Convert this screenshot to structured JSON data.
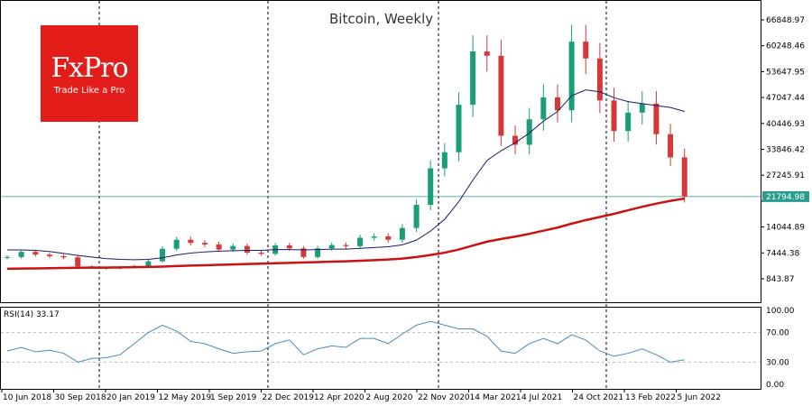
{
  "chart_data": {
    "type": "candlestick",
    "title": "Bitcoin, Weekly",
    "brand": {
      "name": "FxPro",
      "tagline": "Trade Like a Pro",
      "color": "#e31d1a"
    },
    "price_ticks": [
      "66848.97",
      "60248.46",
      "53647.95",
      "47047.44",
      "40446.93",
      "33846.42",
      "27245.91",
      "20645.40",
      "14044.89",
      "7444.38",
      "843.87"
    ],
    "current_price": "21794.98",
    "current_price_value": 21794.98,
    "x_ticks": [
      "10 Jun 2018",
      "30 Sep 2018",
      "20 Jan 2019",
      "12 May 2019",
      "1 Sep 2019",
      "22 Dec 2019",
      "12 Apr 2020",
      "2 Aug 2020",
      "22 Nov 2020",
      "14 Mar 2021",
      "4 Jul 2021",
      "24 Oct 2021",
      "13 Feb 2022",
      "5 Jun 2022"
    ],
    "closes": [
      6400,
      7700,
      7000,
      6600,
      6300,
      4000,
      3700,
      3450,
      3800,
      4100,
      5300,
      8500,
      10800,
      10000,
      9600,
      8300,
      9200,
      7500,
      7200,
      9350,
      8600,
      6400,
      8600,
      9450,
      9150,
      11300,
      11650,
      10800,
      13800,
      19700,
      29000,
      33100,
      45200,
      58800,
      57700,
      37300,
      35000,
      41500,
      47100,
      43800,
      61300,
      57000,
      46300,
      38500,
      43200,
      45500,
      37700,
      31800,
      21795
    ],
    "ma_slow": [
      3400,
      3450,
      3500,
      3550,
      3600,
      3650,
      3700,
      3700,
      3750,
      3800,
      3850,
      3950,
      4100,
      4200,
      4300,
      4400,
      4500,
      4600,
      4700,
      4800,
      4900,
      5000,
      5100,
      5200,
      5300,
      5450,
      5600,
      5750,
      6000,
      6400,
      6900,
      7500,
      8300,
      9300,
      10300,
      11000,
      11600,
      12300,
      13100,
      13900,
      14900,
      15800,
      16600,
      17400,
      18300,
      19200,
      20000,
      20700,
      21300
    ],
    "ma_fast": [
      8200,
      8200,
      8100,
      7800,
      7300,
      6800,
      6400,
      6000,
      5800,
      5700,
      5800,
      6200,
      6900,
      7400,
      7700,
      7900,
      8000,
      8100,
      8100,
      8300,
      8300,
      8200,
      8300,
      8400,
      8400,
      8600,
      8800,
      9000,
      9500,
      10700,
      13000,
      16000,
      20500,
      26000,
      31000,
      33500,
      35500,
      38000,
      41000,
      43500,
      47500,
      49000,
      48500,
      47000,
      46000,
      45500,
      45000,
      44500,
      43500
    ],
    "rsi": {
      "label": "RSI(14) 33.17",
      "period": 14,
      "current": 33.17,
      "ticks": [
        "100.00",
        "70.00",
        "30.00",
        "0.00"
      ],
      "levels": [
        70,
        30
      ],
      "values": [
        45,
        50,
        44,
        46,
        42,
        30,
        35,
        36,
        40,
        55,
        70,
        80,
        72,
        58,
        55,
        48,
        42,
        44,
        45,
        55,
        60,
        40,
        48,
        52,
        50,
        62,
        62,
        55,
        68,
        80,
        85,
        80,
        75,
        75,
        65,
        45,
        42,
        55,
        62,
        55,
        67,
        60,
        45,
        38,
        42,
        48,
        40,
        30,
        33.17
      ]
    },
    "colors": {
      "up": "#1a9e7a",
      "down": "#d4393a",
      "ma_slow": "#cc1111",
      "ma_fast": "#1a1a66",
      "rsi": "#4a8ab8",
      "price_line": "#2a9d8f"
    }
  }
}
